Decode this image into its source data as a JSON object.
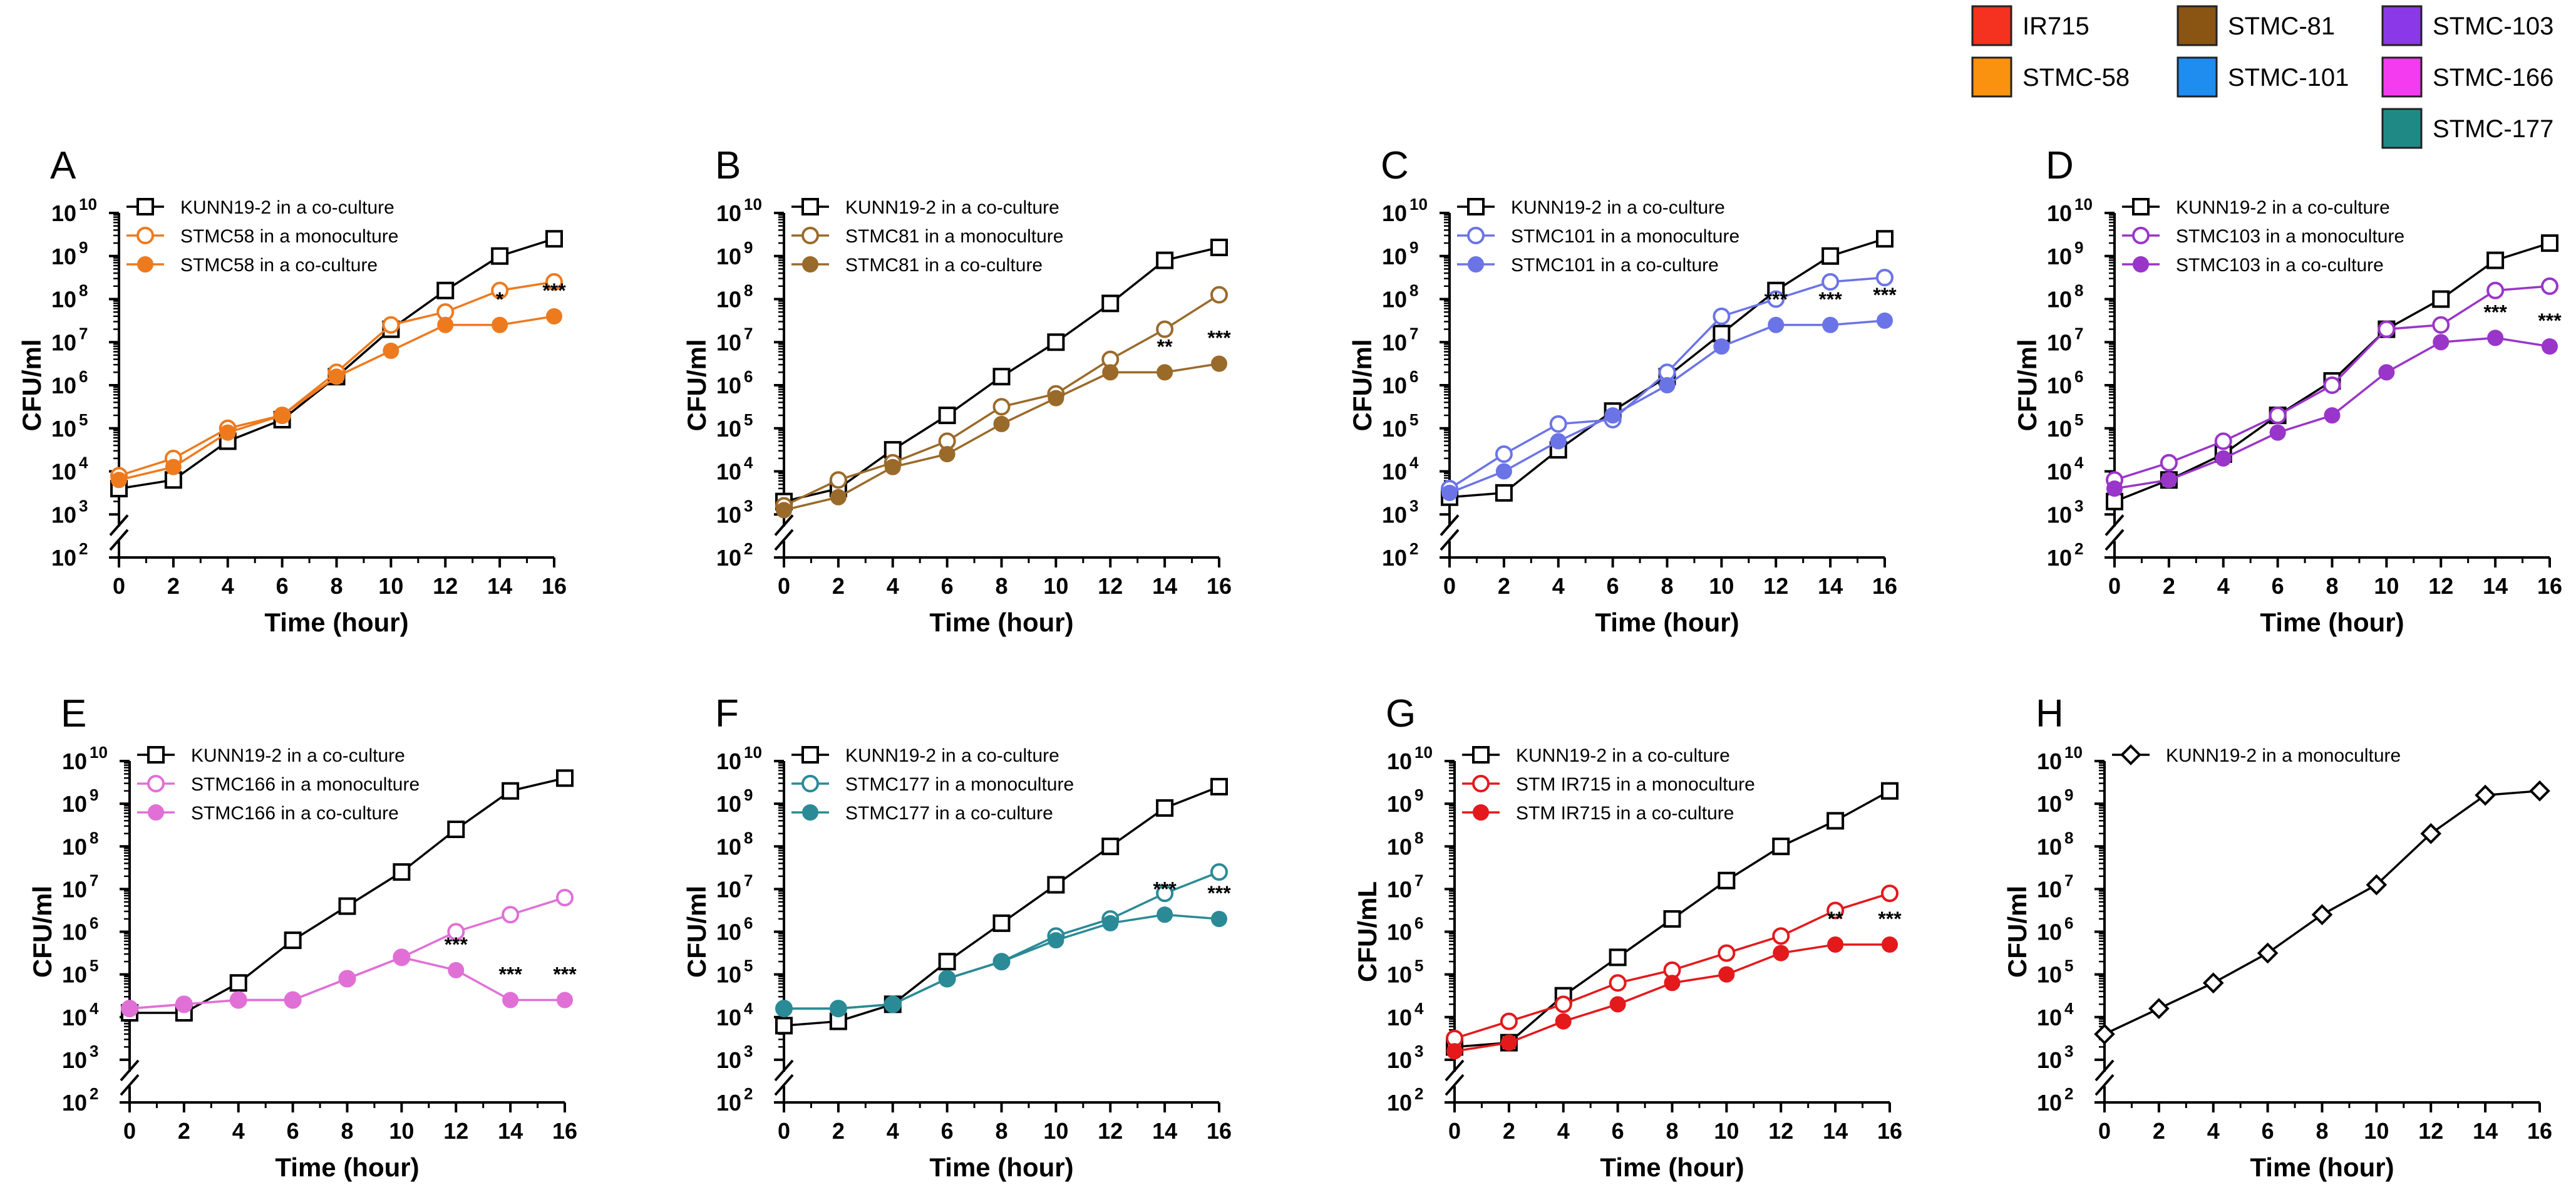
{
  "figure_legend": [
    {
      "label": "IR715",
      "color": "#f5311f"
    },
    {
      "label": "STMC-81",
      "color": "#8a5413"
    },
    {
      "label": "STMC-103",
      "color": "#8a38e8"
    },
    {
      "label": "STMC-58",
      "color": "#fa920f"
    },
    {
      "label": "STMC-101",
      "color": "#1f8cf0"
    },
    {
      "label": "STMC-166",
      "color": "#f53bf0"
    },
    {
      "label": "STMC-177",
      "color": "#1f8a85"
    }
  ],
  "y_tick_labels": [
    "10",
    "10",
    "10",
    "10",
    "10",
    "10",
    "10",
    "10",
    "10"
  ],
  "y_tick_exponents": [
    "2",
    "3",
    "4",
    "5",
    "6",
    "7",
    "8",
    "9",
    "10"
  ],
  "chart_data": [
    {
      "panel": "A",
      "type": "line",
      "xlabel": "Time (hour)",
      "ylabel": "CFU/ml",
      "x": [
        0,
        2,
        4,
        6,
        8,
        10,
        12,
        14,
        16
      ],
      "xlim": [
        0,
        16
      ],
      "ylim_log10": [
        2,
        10
      ],
      "axis_break_below": 3,
      "series": [
        {
          "name": "KUNN19-2 in a co-culture",
          "marker": "open-square",
          "color": "#000000",
          "log10_values": [
            3.6,
            3.8,
            4.7,
            5.2,
            6.2,
            7.3,
            8.2,
            9.0,
            9.4
          ]
        },
        {
          "name": "STMC58 in a monoculture",
          "marker": "open-circle",
          "color": "#ee7a1e",
          "log10_values": [
            3.9,
            4.3,
            5.0,
            5.3,
            6.3,
            7.4,
            7.7,
            8.2,
            8.4
          ]
        },
        {
          "name": "STMC58 in a co-culture",
          "marker": "filled-circle",
          "color": "#ee7a1e",
          "log10_values": [
            3.8,
            4.1,
            4.9,
            5.3,
            6.2,
            6.8,
            7.4,
            7.4,
            7.6
          ]
        }
      ],
      "significance": [
        {
          "x": 14,
          "label": "*"
        },
        {
          "x": 16,
          "label": "***"
        }
      ]
    },
    {
      "panel": "B",
      "type": "line",
      "xlabel": "Time (hour)",
      "ylabel": "CFU/ml",
      "x": [
        0,
        2,
        4,
        6,
        8,
        10,
        12,
        14,
        16
      ],
      "xlim": [
        0,
        16
      ],
      "ylim_log10": [
        2,
        10
      ],
      "axis_break_below": 3,
      "series": [
        {
          "name": "KUNN19-2 in a co-culture",
          "marker": "open-square",
          "color": "#000000",
          "log10_values": [
            3.3,
            3.6,
            4.5,
            5.3,
            6.2,
            7.0,
            7.9,
            8.9,
            9.2
          ]
        },
        {
          "name": "STMC81 in a monoculture",
          "marker": "open-circle",
          "color": "#9a6a2a",
          "log10_values": [
            3.2,
            3.8,
            4.2,
            4.7,
            5.5,
            5.8,
            6.6,
            7.3,
            8.1
          ]
        },
        {
          "name": "STMC81 in a co-culture",
          "marker": "filled-circle",
          "color": "#9a6a2a",
          "log10_values": [
            3.1,
            3.4,
            4.1,
            4.4,
            5.1,
            5.7,
            6.3,
            6.3,
            6.5
          ]
        }
      ],
      "significance": [
        {
          "x": 14,
          "label": "**"
        },
        {
          "x": 16,
          "label": "***"
        }
      ]
    },
    {
      "panel": "C",
      "type": "line",
      "xlabel": "Time (hour)",
      "ylabel": "CFU/ml",
      "x": [
        0,
        2,
        4,
        6,
        8,
        10,
        12,
        14,
        16
      ],
      "xlim": [
        0,
        16
      ],
      "ylim_log10": [
        2,
        10
      ],
      "axis_break_below": 3,
      "series": [
        {
          "name": "KUNN19-2 in a co-culture",
          "marker": "open-square",
          "color": "#000000",
          "log10_values": [
            3.4,
            3.5,
            4.5,
            5.4,
            6.2,
            7.2,
            8.2,
            9.0,
            9.4
          ]
        },
        {
          "name": "STMC101 in a monoculture",
          "marker": "open-circle",
          "color": "#6b74e6",
          "log10_values": [
            3.6,
            4.4,
            5.1,
            5.2,
            6.3,
            7.6,
            8.0,
            8.4,
            8.5
          ]
        },
        {
          "name": "STMC101 in a co-culture",
          "marker": "filled-circle",
          "color": "#6b74e6",
          "log10_values": [
            3.5,
            4.0,
            4.7,
            5.3,
            6.0,
            6.9,
            7.4,
            7.4,
            7.5
          ]
        }
      ],
      "significance": [
        {
          "x": 12,
          "label": "***"
        },
        {
          "x": 14,
          "label": "***"
        },
        {
          "x": 16,
          "label": "***"
        }
      ]
    },
    {
      "panel": "D",
      "type": "line",
      "xlabel": "Time (hour)",
      "ylabel": "CFU/ml",
      "x": [
        0,
        2,
        4,
        6,
        8,
        10,
        12,
        14,
        16
      ],
      "xlim": [
        0,
        16
      ],
      "ylim_log10": [
        2,
        10
      ],
      "axis_break_below": 3,
      "series": [
        {
          "name": "KUNN19-2 in a co-culture",
          "marker": "open-square",
          "color": "#000000",
          "log10_values": [
            3.3,
            3.8,
            4.4,
            5.3,
            6.1,
            7.3,
            8.0,
            8.9,
            9.3
          ]
        },
        {
          "name": "STMC103 in a monoculture",
          "marker": "open-circle",
          "color": "#9a35c9",
          "log10_values": [
            3.8,
            4.2,
            4.7,
            5.3,
            6.0,
            7.3,
            7.4,
            8.2,
            8.3
          ]
        },
        {
          "name": "STMC103 in a co-culture",
          "marker": "filled-circle",
          "color": "#9a35c9",
          "log10_values": [
            3.6,
            3.8,
            4.3,
            4.9,
            5.3,
            6.3,
            7.0,
            7.1,
            6.9
          ]
        }
      ],
      "significance": [
        {
          "x": 14,
          "label": "***"
        },
        {
          "x": 16,
          "label": "***"
        }
      ]
    },
    {
      "panel": "E",
      "type": "line",
      "xlabel": "Time (hour)",
      "ylabel": "CFU/ml",
      "x": [
        0,
        2,
        4,
        6,
        8,
        10,
        12,
        14,
        16
      ],
      "xlim": [
        0,
        16
      ],
      "ylim_log10": [
        2,
        10
      ],
      "axis_break_below": 3,
      "series": [
        {
          "name": "KUNN19-2 in a co-culture",
          "marker": "open-square",
          "color": "#000000",
          "log10_values": [
            4.1,
            4.1,
            4.8,
            5.8,
            6.6,
            7.4,
            8.4,
            9.3,
            9.6
          ]
        },
        {
          "name": "STMC166 in a monoculture",
          "marker": "open-circle",
          "color": "#e070d6",
          "log10_values": [
            4.2,
            4.3,
            4.4,
            4.4,
            4.9,
            5.4,
            6.0,
            6.4,
            6.8
          ]
        },
        {
          "name": "STMC166 in a co-culture",
          "marker": "filled-circle",
          "color": "#e070d6",
          "log10_values": [
            4.2,
            4.3,
            4.4,
            4.4,
            4.9,
            5.4,
            5.1,
            4.4,
            4.4
          ]
        }
      ],
      "significance": [
        {
          "x": 12,
          "label": "***"
        },
        {
          "x": 14,
          "label": "***"
        },
        {
          "x": 16,
          "label": "***"
        }
      ]
    },
    {
      "panel": "F",
      "type": "line",
      "xlabel": "Time (hour)",
      "ylabel": "CFU/ml",
      "x": [
        0,
        2,
        4,
        6,
        8,
        10,
        12,
        14,
        16
      ],
      "xlim": [
        0,
        16
      ],
      "ylim_log10": [
        2,
        10
      ],
      "axis_break_below": 3,
      "series": [
        {
          "name": "KUNN19-2 in a co-culture",
          "marker": "open-square",
          "color": "#000000",
          "log10_values": [
            3.8,
            3.9,
            4.3,
            5.3,
            6.2,
            7.1,
            8.0,
            8.9,
            9.4
          ]
        },
        {
          "name": "STMC177 in a monoculture",
          "marker": "open-circle",
          "color": "#2a8a96",
          "log10_values": [
            4.2,
            4.2,
            4.3,
            4.9,
            5.3,
            5.9,
            6.3,
            6.9,
            7.4
          ]
        },
        {
          "name": "STMC177 in a co-culture",
          "marker": "filled-circle",
          "color": "#2a8a96",
          "log10_values": [
            4.2,
            4.2,
            4.3,
            4.9,
            5.3,
            5.8,
            6.2,
            6.4,
            6.3
          ]
        }
      ],
      "significance": [
        {
          "x": 14,
          "label": "***"
        },
        {
          "x": 16,
          "label": "***"
        }
      ]
    },
    {
      "panel": "G",
      "type": "line",
      "xlabel": "Time (hour)",
      "ylabel": "CFU/mL",
      "x": [
        0,
        2,
        4,
        6,
        8,
        10,
        12,
        14,
        16
      ],
      "xlim": [
        0,
        16
      ],
      "ylim_log10": [
        2,
        10
      ],
      "axis_break_below": 3,
      "series": [
        {
          "name": "KUNN19-2 in a co-culture",
          "marker": "open-square",
          "color": "#000000",
          "log10_values": [
            3.3,
            3.4,
            4.5,
            5.4,
            6.3,
            7.2,
            8.0,
            8.6,
            9.3
          ]
        },
        {
          "name": "STM IR715 in a monoculture",
          "marker": "open-circle",
          "color": "#e3191c",
          "log10_values": [
            3.5,
            3.9,
            4.3,
            4.8,
            5.1,
            5.5,
            5.9,
            6.5,
            6.9
          ]
        },
        {
          "name": "STM IR715 in a co-culture",
          "marker": "filled-circle",
          "color": "#e3191c",
          "log10_values": [
            3.2,
            3.4,
            3.9,
            4.3,
            4.8,
            5.0,
            5.5,
            5.7,
            5.7
          ]
        }
      ],
      "significance": [
        {
          "x": 14,
          "label": "**"
        },
        {
          "x": 16,
          "label": "***"
        }
      ]
    },
    {
      "panel": "H",
      "type": "line",
      "xlabel": "Time (hour)",
      "ylabel": "CFU/ml",
      "x": [
        0,
        2,
        4,
        6,
        8,
        10,
        12,
        14,
        16
      ],
      "xlim": [
        0,
        16
      ],
      "ylim_log10": [
        2,
        10
      ],
      "axis_break_below": 3,
      "series": [
        {
          "name": "KUNN19-2 in a monoculture",
          "marker": "open-diamond",
          "color": "#000000",
          "log10_values": [
            3.6,
            4.2,
            4.8,
            5.5,
            6.4,
            7.1,
            8.3,
            9.2,
            9.3
          ]
        }
      ],
      "significance": []
    }
  ]
}
